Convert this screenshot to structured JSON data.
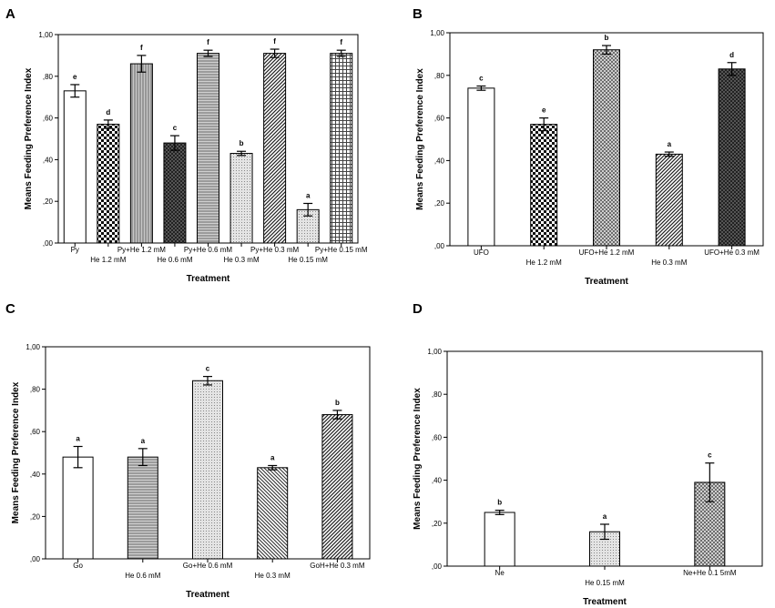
{
  "figure": {
    "panels": [
      "A",
      "B",
      "C",
      "D"
    ]
  },
  "chart_data": [
    {
      "panel": "A",
      "type": "bar",
      "title": "",
      "xlabel": "Treatment",
      "ylabel": "Means Feeding Preference Index",
      "ylim": [
        0,
        1.0
      ],
      "yticks": [
        ",00",
        ",20",
        ",40",
        ",60",
        ",80",
        "1,00"
      ],
      "categories": [
        "Py",
        "He 1.2 mM",
        "Py+He 1.2 mM",
        "He 0.6 mM",
        "Py+He 0.6 mM",
        "He 0.3 mM",
        "Py+He 0.3 mM",
        "He 0.15 mM",
        "Py+He 0.15 mM"
      ],
      "values": [
        0.73,
        0.57,
        0.86,
        0.48,
        0.91,
        0.43,
        0.91,
        0.16,
        0.91
      ],
      "errors": [
        0.03,
        0.02,
        0.04,
        0.035,
        0.015,
        0.01,
        0.02,
        0.03,
        0.015
      ],
      "letters": [
        "e",
        "d",
        "f",
        "c",
        "f",
        "b",
        "f",
        "a",
        "f"
      ],
      "patterns": [
        "white",
        "checker",
        "vlines",
        "darkcheck",
        "hlines",
        "dots",
        "diag",
        "dots",
        "grid"
      ]
    },
    {
      "panel": "B",
      "type": "bar",
      "title": "",
      "xlabel": "Treatment",
      "ylabel": "Means Feeding Preference Index",
      "ylim": [
        0,
        1.0
      ],
      "yticks": [
        ",00",
        ",20",
        ",40",
        ",60",
        ",80",
        "1,00"
      ],
      "categories": [
        "UFO",
        "He 1.2 mM",
        "UFO+He 1.2 mM",
        "He 0.3 mM",
        "UFO+He 0.3 mM"
      ],
      "values": [
        0.74,
        0.57,
        0.92,
        0.43,
        0.83
      ],
      "errors": [
        0.01,
        0.03,
        0.02,
        0.01,
        0.03
      ],
      "letters": [
        "c",
        "e",
        "b",
        "a",
        "d"
      ],
      "patterns": [
        "white",
        "checker",
        "crosshatch",
        "diag",
        "darkcheck"
      ]
    },
    {
      "panel": "C",
      "type": "bar",
      "title": "",
      "xlabel": "Treatment",
      "ylabel": "Means Feeding Preference Index",
      "ylim": [
        0,
        1.0
      ],
      "yticks": [
        ",00",
        ",20",
        ",40",
        ",60",
        ",80",
        "1,00"
      ],
      "categories": [
        "Go",
        "He 0.6 mM",
        "Go+He 0.6 mM",
        "He 0.3 mM",
        "GoH+He 0.3 mM"
      ],
      "values": [
        0.48,
        0.48,
        0.84,
        0.43,
        0.68
      ],
      "errors": [
        0.05,
        0.04,
        0.02,
        0.01,
        0.02
      ],
      "letters": [
        "a",
        "a",
        "c",
        "a",
        "b"
      ],
      "patterns": [
        "white",
        "hlines",
        "dots",
        "diagback",
        "diag"
      ]
    },
    {
      "panel": "D",
      "type": "bar",
      "title": "",
      "xlabel": "Treatment",
      "ylabel": "Means Feeding Preference Index",
      "ylim": [
        0,
        1.0
      ],
      "yticks": [
        ",00",
        ",20",
        ",40",
        ",60",
        ",80",
        "1,00"
      ],
      "categories": [
        "Ne",
        "He 0.15 mM",
        "Ne+He 0.1 5mM"
      ],
      "values": [
        0.25,
        0.16,
        0.39
      ],
      "errors": [
        0.01,
        0.035,
        0.09
      ],
      "letters": [
        "b",
        "a",
        "c"
      ],
      "patterns": [
        "white",
        "dots",
        "crosshatch"
      ]
    }
  ]
}
